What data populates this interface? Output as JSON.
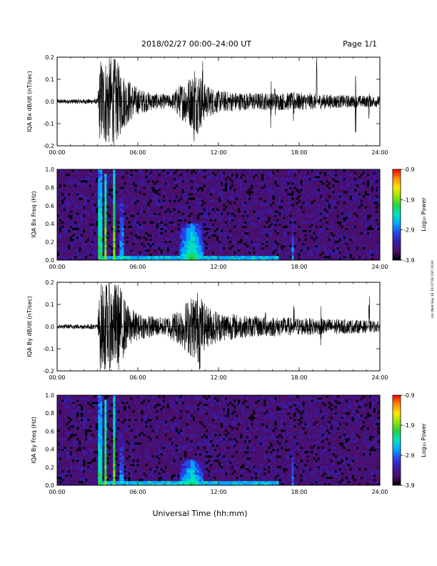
{
  "header": {
    "title": "2018/02/27  00:00–24:00 UT",
    "page": "Page 1/1"
  },
  "footer": {
    "xlabel": "Universal Time (hh:mm)",
    "stamp": "rnh Wed Sep 18 19:37:06 CST 2019"
  },
  "colors": {
    "trace": "#000000",
    "colormap": [
      "#000000",
      "#4a0f6a",
      "#3a1aa8",
      "#2b45e6",
      "#00a6ff",
      "#00e0c0",
      "#22d24a",
      "#8ee600",
      "#ffe600",
      "#ff8c00",
      "#ff0000"
    ]
  },
  "chart_data": [
    {
      "type": "line",
      "ylabel": "IQA Bx dB/dt (nT/sec)",
      "xlim": [
        0,
        24
      ],
      "ylim": [
        -0.2,
        0.2
      ],
      "xticks": [
        "00:00",
        "06:00",
        "12:00",
        "18:00",
        "24:00"
      ],
      "yticks": [
        "-0.2",
        "-0.1",
        "0.0",
        "0.1",
        "0.2"
      ],
      "grid": false,
      "activity": [
        {
          "t": 0.0,
          "amp": 0.01
        },
        {
          "t": 3.0,
          "amp": 0.012
        },
        {
          "t": 3.2,
          "amp": 0.2
        },
        {
          "t": 3.6,
          "amp": 0.2
        },
        {
          "t": 4.3,
          "amp": 0.2
        },
        {
          "t": 5.0,
          "amp": 0.12
        },
        {
          "t": 6.0,
          "amp": 0.06
        },
        {
          "t": 7.0,
          "amp": 0.04
        },
        {
          "t": 8.5,
          "amp": 0.03
        },
        {
          "t": 9.0,
          "amp": 0.07
        },
        {
          "t": 10.5,
          "amp": 0.15
        },
        {
          "t": 11.0,
          "amp": 0.08
        },
        {
          "t": 12.0,
          "amp": 0.05
        },
        {
          "t": 14.0,
          "amp": 0.04
        },
        {
          "t": 18.0,
          "amp": 0.04
        },
        {
          "t": 21.0,
          "amp": 0.03
        },
        {
          "t": 24.0,
          "amp": 0.025
        }
      ],
      "spikes": [
        {
          "t": 10.2,
          "amp": 0.2
        },
        {
          "t": 10.8,
          "amp": 0.2
        },
        {
          "t": 15.9,
          "amp": 0.12
        },
        {
          "t": 16.2,
          "amp": 0.11
        },
        {
          "t": 17.6,
          "amp": 0.13
        },
        {
          "t": 19.3,
          "amp": 0.2
        },
        {
          "t": 22.2,
          "amp": 0.14
        },
        {
          "t": 23.2,
          "amp": 0.1
        }
      ]
    },
    {
      "type": "heatmap",
      "ylabel": "IQA Bx Freq (Hz)",
      "xlim": [
        0,
        24
      ],
      "ylim": [
        0,
        1
      ],
      "xticks": [
        "00:00",
        "06:00",
        "12:00",
        "18:00",
        "24:00"
      ],
      "yticks": [
        "0.0",
        "0.2",
        "0.4",
        "0.6",
        "0.8",
        "1.0"
      ],
      "colorbar": {
        "label": "Log₁₀ Power",
        "range": [
          -3.9,
          -0.9
        ],
        "ticks": [
          "-0.9",
          "-1.9",
          "-2.9",
          "-3.9"
        ]
      },
      "bursts": [
        {
          "t": 3.2,
          "f_max": 1.0,
          "level": -1.5
        },
        {
          "t": 3.6,
          "f_max": 0.95,
          "level": -1.8
        },
        {
          "t": 4.3,
          "f_max": 1.0,
          "level": -1.3
        },
        {
          "t": 4.8,
          "f_max": 0.7,
          "level": -2.0
        },
        {
          "t": 10.0,
          "f_max": 0.4,
          "level": -2.0
        },
        {
          "t": 17.5,
          "f_max": 0.5,
          "level": -2.6
        }
      ]
    },
    {
      "type": "line",
      "ylabel": "IQA By dB/dt (nT/sec)",
      "xlim": [
        0,
        24
      ],
      "ylim": [
        -0.2,
        0.2
      ],
      "xticks": [
        "00:00",
        "06:00",
        "12:00",
        "18:00",
        "24:00"
      ],
      "yticks": [
        "-0.2",
        "-0.1",
        "0.0",
        "0.1",
        "0.2"
      ],
      "grid": false,
      "activity": [
        {
          "t": 0.0,
          "amp": 0.01
        },
        {
          "t": 3.0,
          "amp": 0.012
        },
        {
          "t": 3.2,
          "amp": 0.2
        },
        {
          "t": 4.0,
          "amp": 0.2
        },
        {
          "t": 4.6,
          "amp": 0.2
        },
        {
          "t": 5.2,
          "amp": 0.1
        },
        {
          "t": 6.0,
          "amp": 0.06
        },
        {
          "t": 8.0,
          "amp": 0.04
        },
        {
          "t": 9.0,
          "amp": 0.08
        },
        {
          "t": 10.5,
          "amp": 0.17
        },
        {
          "t": 11.0,
          "amp": 0.1
        },
        {
          "t": 12.0,
          "amp": 0.07
        },
        {
          "t": 14.0,
          "amp": 0.05
        },
        {
          "t": 18.0,
          "amp": 0.04
        },
        {
          "t": 21.0,
          "amp": 0.035
        },
        {
          "t": 24.0,
          "amp": 0.025
        }
      ],
      "spikes": [
        {
          "t": 10.6,
          "amp": 0.2
        },
        {
          "t": 15.5,
          "amp": 0.1
        },
        {
          "t": 17.6,
          "amp": 0.1
        },
        {
          "t": 19.6,
          "amp": 0.13
        },
        {
          "t": 23.2,
          "amp": 0.14
        }
      ]
    },
    {
      "type": "heatmap",
      "ylabel": "IQA By Freq (Hz)",
      "xlim": [
        0,
        24
      ],
      "ylim": [
        0,
        1
      ],
      "xticks": [
        "00:00",
        "06:00",
        "12:00",
        "18:00",
        "24:00"
      ],
      "yticks": [
        "0.0",
        "0.2",
        "0.4",
        "0.6",
        "0.8",
        "1.0"
      ],
      "colorbar": {
        "label": "Log₁₀ Power",
        "range": [
          -3.9,
          -0.9
        ],
        "ticks": [
          "-0.9",
          "-1.9",
          "-2.9",
          "-3.9"
        ]
      },
      "bursts": [
        {
          "t": 3.2,
          "f_max": 1.0,
          "level": -1.6
        },
        {
          "t": 3.6,
          "f_max": 0.95,
          "level": -1.9
        },
        {
          "t": 4.3,
          "f_max": 1.0,
          "level": -1.4
        },
        {
          "t": 4.8,
          "f_max": 0.6,
          "level": -2.1
        },
        {
          "t": 10.0,
          "f_max": 0.28,
          "level": -2.1
        },
        {
          "t": 17.5,
          "f_max": 0.5,
          "level": -2.6
        }
      ]
    }
  ]
}
